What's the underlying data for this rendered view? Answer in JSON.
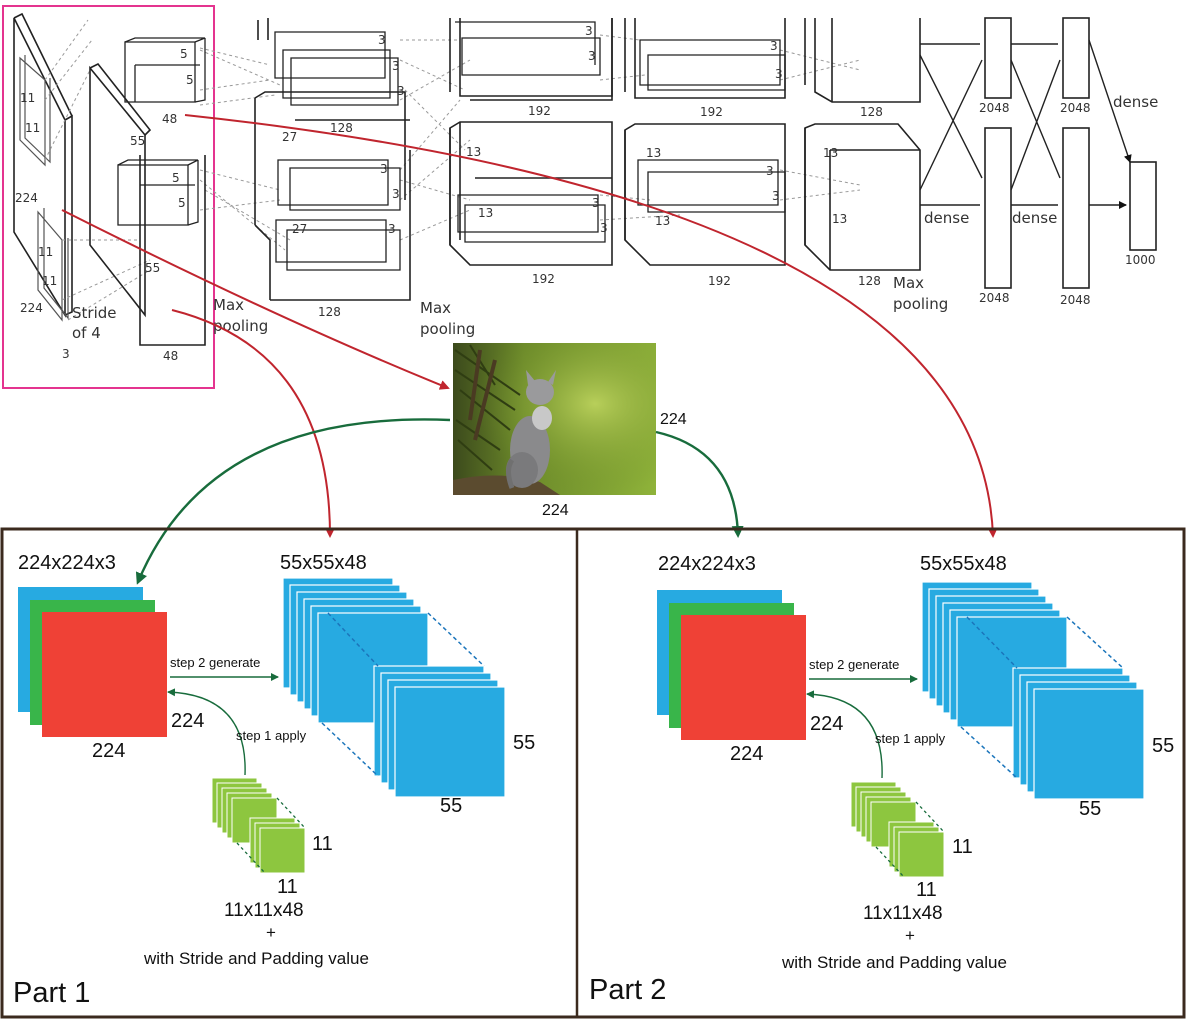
{
  "network": {
    "input_labels": {
      "dim_h": "224",
      "dim_w": "224",
      "depth": "3",
      "kernel_a": "11",
      "kernel_b": "11",
      "kernel_c": "11",
      "kernel_d": "11",
      "stride": "Stride",
      "stride_of": "of 4"
    },
    "conv1": {
      "kernel_a": "5",
      "kernel_b": "5",
      "kernel_c": "5",
      "kernel_d": "5",
      "depth_top": "48",
      "depth_bottom": "48",
      "size_top": "55",
      "size_bottom": "55",
      "pool_a": "Max",
      "pool_b": "pooling"
    },
    "conv2": {
      "k1": "3",
      "k2": "3",
      "k3": "3",
      "k4": "3",
      "k5": "3",
      "k6": "3",
      "size_top": "27",
      "size_bottom": "27",
      "depth_top": "128",
      "depth_bottom": "128",
      "pool_a": "Max",
      "pool_b": "pooling"
    },
    "conv3": {
      "k1": "3",
      "k2": "3",
      "k3": "3",
      "k4": "3",
      "size_top": "13",
      "size_bottom": "13",
      "depth_top": "192",
      "depth_bottom": "192"
    },
    "conv4": {
      "k1": "3",
      "k2": "3",
      "k3": "3",
      "k4": "3",
      "size_top": "13",
      "size_bottom": "13",
      "depth_top": "192",
      "depth_bottom": "192"
    },
    "conv5": {
      "size_a": "13",
      "size_b": "13",
      "depth_top": "128",
      "depth_bottom": "128",
      "pool_a": "Max",
      "pool_b": "pooling"
    },
    "dense": {
      "label_1": "dense",
      "label_2": "dense",
      "label_3": "dense",
      "fc1_top": "2048",
      "fc1_bottom": "2048",
      "fc2_top": "2048",
      "fc2_bottom": "2048",
      "out": "1000"
    }
  },
  "photo": {
    "subject": "kitten sitting by a pine tree",
    "width_label": "224",
    "height_label": "224"
  },
  "parts": [
    {
      "title": "Part 1",
      "input_dims": "224x224x3",
      "input_width": "224",
      "input_height": "224",
      "output_dims": "55x55x48",
      "output_width": "55",
      "output_height": "55",
      "step1": "step 1 apply",
      "step2": "step 2 generate",
      "kernel_h": "11",
      "kernel_w": "11",
      "kernel_dims": "11x11x48",
      "plus": "+",
      "note": "with Stride and Padding value"
    },
    {
      "title": "Part 2",
      "input_dims": "224x224x3",
      "input_width": "224",
      "input_height": "224",
      "output_dims": "55x55x48",
      "output_width": "55",
      "output_height": "55",
      "step1": "step 1 apply",
      "step2": "step 2 generate",
      "kernel_h": "11",
      "kernel_w": "11",
      "kernel_dims": "11x11x48",
      "plus": "+",
      "note": "with Stride and Padding value"
    }
  ],
  "colors": {
    "highlight": "#e4348f",
    "red_arrow": "#c0252e",
    "green_arrow": "#186c3c",
    "cube_blue": "#27aae1",
    "channel_red": "#ef4136",
    "channel_green": "#39b54a",
    "kernel_green": "#8dc63f",
    "frame": "#3b2a1e",
    "dashed_blue": "#1b75bb"
  }
}
